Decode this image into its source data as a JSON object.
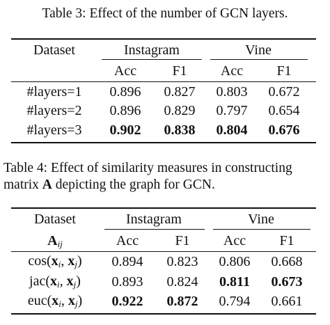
{
  "table3": {
    "caption": "Table 3: Effect of the number of GCN layers.",
    "header": {
      "dataset_label": "Dataset",
      "groups": [
        "Instagram",
        "Vine"
      ],
      "metrics": [
        "Acc",
        "F1",
        "Acc",
        "F1"
      ]
    },
    "rows": [
      {
        "label": "#layers=1",
        "values": [
          "0.896",
          "0.827",
          "0.803",
          "0.672"
        ],
        "bold": [
          false,
          false,
          false,
          false
        ]
      },
      {
        "label": "#layers=2",
        "values": [
          "0.896",
          "0.829",
          "0.797",
          "0.654"
        ],
        "bold": [
          false,
          false,
          false,
          false
        ]
      },
      {
        "label": "#layers=3",
        "values": [
          "0.902",
          "0.838",
          "0.804",
          "0.676"
        ],
        "bold": [
          true,
          true,
          true,
          true
        ]
      }
    ]
  },
  "table4": {
    "caption": "Table 4:  Effect of similarity measures in constructing matrix A depicting the graph for GCN.",
    "header": {
      "dataset_label": "Dataset",
      "row_header_symbol": "A",
      "row_header_sub": "ij",
      "groups": [
        "Instagram",
        "Vine"
      ],
      "metrics": [
        "Acc",
        "F1",
        "Acc",
        "F1"
      ]
    },
    "rows": [
      {
        "func": "cos",
        "values": [
          "0.894",
          "0.823",
          "0.806",
          "0.668"
        ],
        "bold": [
          false,
          false,
          false,
          false
        ]
      },
      {
        "func": "jac",
        "values": [
          "0.893",
          "0.824",
          "0.811",
          "0.673"
        ],
        "bold": [
          false,
          false,
          true,
          true
        ]
      },
      {
        "func": "euc",
        "values": [
          "0.922",
          "0.872",
          "0.794",
          "0.661"
        ],
        "bold": [
          true,
          true,
          false,
          false
        ]
      }
    ],
    "arg_symbol": "x",
    "arg_subs": [
      "i",
      "j"
    ]
  }
}
